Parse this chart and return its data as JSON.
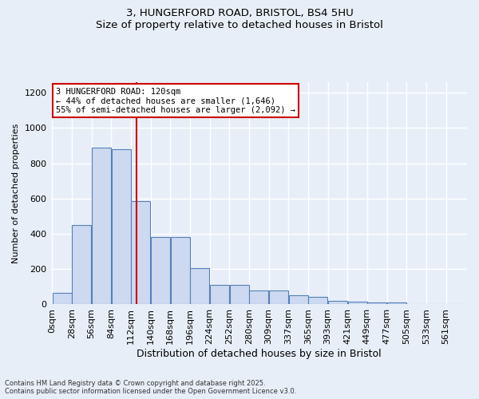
{
  "title_line1": "3, HUNGERFORD ROAD, BRISTOL, BS4 5HU",
  "title_line2": "Size of property relative to detached houses in Bristol",
  "xlabel": "Distribution of detached houses by size in Bristol",
  "ylabel": "Number of detached properties",
  "bar_color": "#ccd9f0",
  "bar_edge_color": "#5580b8",
  "background_color": "#e8eef8",
  "grid_color": "#ffffff",
  "bin_labels": [
    "0sqm",
    "28sqm",
    "56sqm",
    "84sqm",
    "112sqm",
    "140sqm",
    "168sqm",
    "196sqm",
    "224sqm",
    "252sqm",
    "280sqm",
    "309sqm",
    "337sqm",
    "365sqm",
    "393sqm",
    "421sqm",
    "449sqm",
    "477sqm",
    "505sqm",
    "533sqm",
    "561sqm"
  ],
  "bar_heights": [
    65,
    450,
    890,
    880,
    585,
    380,
    380,
    205,
    110,
    110,
    80,
    80,
    50,
    45,
    20,
    15,
    10,
    10,
    0,
    0,
    0
  ],
  "ylim": [
    0,
    1260
  ],
  "yticks": [
    0,
    200,
    400,
    600,
    800,
    1000,
    1200
  ],
  "property_size_sqm": 120,
  "property_label": "3 HUNGERFORD ROAD: 120sqm",
  "annotation_line1": "← 44% of detached houses are smaller (1,646)",
  "annotation_line2": "55% of semi-detached houses are larger (2,092) →",
  "red_line_color": "#cc0000",
  "annotation_box_color": "#ffffff",
  "annotation_box_edge": "#cc0000",
  "footer_line1": "Contains HM Land Registry data © Crown copyright and database right 2025.",
  "footer_line2": "Contains public sector information licensed under the Open Government Licence v3.0."
}
